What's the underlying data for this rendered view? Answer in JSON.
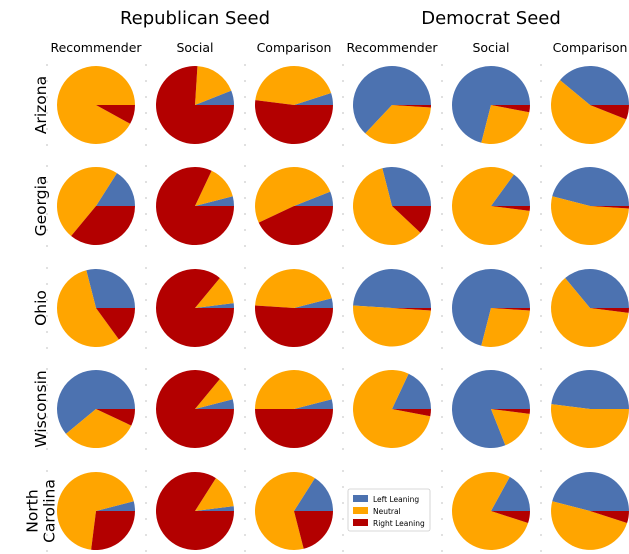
{
  "chart_data": {
    "type": "pie",
    "legend": {
      "placement": "inside empty grid cell (North Carolina, Democrat Seed, Recommender)",
      "entries": [
        {
          "label": "Left Leaning",
          "color": "#4c72b0"
        },
        {
          "label": "Neutral",
          "color": "#ffa500"
        },
        {
          "label": "Right Leaning",
          "color": "#b30000"
        }
      ]
    },
    "seed_groups": [
      {
        "title": "Republican Seed",
        "columns": [
          "Recommender",
          "Social",
          "Comparison"
        ]
      },
      {
        "title": "Democrat Seed",
        "columns": [
          "Recommender",
          "Social",
          "Comparison"
        ]
      }
    ],
    "states": [
      "Arizona",
      "Georgia",
      "Ohio",
      "Wisconsin",
      "North Carolina"
    ],
    "row_labels": [
      [
        "Arizona"
      ],
      [
        "Georgia"
      ],
      [
        "Ohio"
      ],
      [
        "Wisconsin"
      ],
      [
        "North",
        "Carolina"
      ]
    ],
    "slice_order": [
      "Left Leaning",
      "Neutral",
      "Right Leaning"
    ],
    "values": [
      [
        [
          0,
          92,
          8
        ],
        [
          6,
          18,
          76
        ],
        [
          5,
          43,
          52
        ],
        [
          63,
          36,
          1
        ],
        [
          71,
          26,
          3
        ],
        [
          39,
          55,
          6
        ]
      ],
      [
        [
          16,
          48,
          36
        ],
        [
          4,
          14,
          82
        ],
        [
          6,
          51,
          43
        ],
        [
          29,
          59,
          12
        ],
        [
          15,
          83,
          2
        ],
        [
          46,
          53,
          1
        ]
      ],
      [
        [
          29,
          56,
          15
        ],
        [
          2,
          12,
          86
        ],
        [
          4,
          45,
          51
        ],
        [
          49,
          50,
          1
        ],
        [
          71,
          28,
          1
        ],
        [
          36,
          62,
          2
        ]
      ],
      [
        [
          61,
          32,
          7
        ],
        [
          4,
          10,
          86
        ],
        [
          4,
          46,
          50
        ],
        [
          18,
          79,
          3
        ],
        [
          81,
          17,
          2
        ],
        [
          48,
          52,
          0
        ]
      ],
      [
        [
          4,
          69,
          27
        ],
        [
          2,
          14,
          84
        ],
        [
          16,
          63,
          21
        ],
        null,
        [
          17,
          78,
          5
        ],
        [
          46,
          49,
          5
        ]
      ]
    ]
  }
}
